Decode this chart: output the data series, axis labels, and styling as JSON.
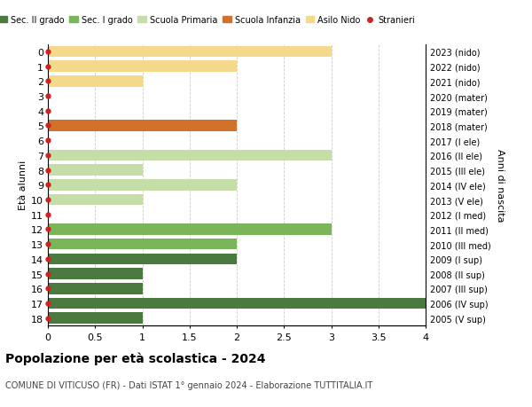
{
  "ages": [
    18,
    17,
    16,
    15,
    14,
    13,
    12,
    11,
    10,
    9,
    8,
    7,
    6,
    5,
    4,
    3,
    2,
    1,
    0
  ],
  "right_labels": [
    "2005 (V sup)",
    "2006 (IV sup)",
    "2007 (III sup)",
    "2008 (II sup)",
    "2009 (I sup)",
    "2010 (III med)",
    "2011 (II med)",
    "2012 (I med)",
    "2013 (V ele)",
    "2014 (IV ele)",
    "2015 (III ele)",
    "2016 (II ele)",
    "2017 (I ele)",
    "2018 (mater)",
    "2019 (mater)",
    "2020 (mater)",
    "2021 (nido)",
    "2022 (nido)",
    "2023 (nido)"
  ],
  "bars": [
    {
      "age": 18,
      "value": 1,
      "color": "#4a7a40"
    },
    {
      "age": 17,
      "value": 4,
      "color": "#4a7a40"
    },
    {
      "age": 16,
      "value": 1,
      "color": "#4a7a40"
    },
    {
      "age": 15,
      "value": 1,
      "color": "#4a7a40"
    },
    {
      "age": 14,
      "value": 2,
      "color": "#4a7a40"
    },
    {
      "age": 13,
      "value": 2,
      "color": "#7ab55a"
    },
    {
      "age": 12,
      "value": 3,
      "color": "#7ab55a"
    },
    {
      "age": 11,
      "value": 0,
      "color": "#7ab55a"
    },
    {
      "age": 10,
      "value": 1,
      "color": "#c5dea8"
    },
    {
      "age": 9,
      "value": 2,
      "color": "#c5dea8"
    },
    {
      "age": 8,
      "value": 1,
      "color": "#c5dea8"
    },
    {
      "age": 7,
      "value": 3,
      "color": "#c5dea8"
    },
    {
      "age": 6,
      "value": 0,
      "color": "#c5dea8"
    },
    {
      "age": 5,
      "value": 2,
      "color": "#d2722a"
    },
    {
      "age": 4,
      "value": 0,
      "color": "#d2722a"
    },
    {
      "age": 3,
      "value": 0,
      "color": "#d2722a"
    },
    {
      "age": 2,
      "value": 1,
      "color": "#f5d98a"
    },
    {
      "age": 1,
      "value": 2,
      "color": "#f5d98a"
    },
    {
      "age": 0,
      "value": 3,
      "color": "#f5d98a"
    }
  ],
  "legend_categories": [
    "Sec. II grado",
    "Sec. I grado",
    "Scuola Primaria",
    "Scuola Infanzia",
    "Asilo Nido",
    "Stranieri"
  ],
  "legend_colors": [
    "#4a7a40",
    "#7ab55a",
    "#c5dea8",
    "#d2722a",
    "#f5d98a",
    "#cc2222"
  ],
  "ylabel_left": "Età alunni",
  "ylabel_right": "Anni di nascita",
  "xlim": [
    0,
    4.0
  ],
  "xticks": [
    0,
    0.5,
    1.0,
    1.5,
    2.0,
    2.5,
    3.0,
    3.5,
    4.0
  ],
  "title": "Popolazione per età scolastica - 2024",
  "subtitle": "COMUNE DI VITICUSO (FR) - Dati ISTAT 1° gennaio 2024 - Elaborazione TUTTITALIA.IT",
  "grid_color": "#cccccc",
  "bar_height": 0.75
}
